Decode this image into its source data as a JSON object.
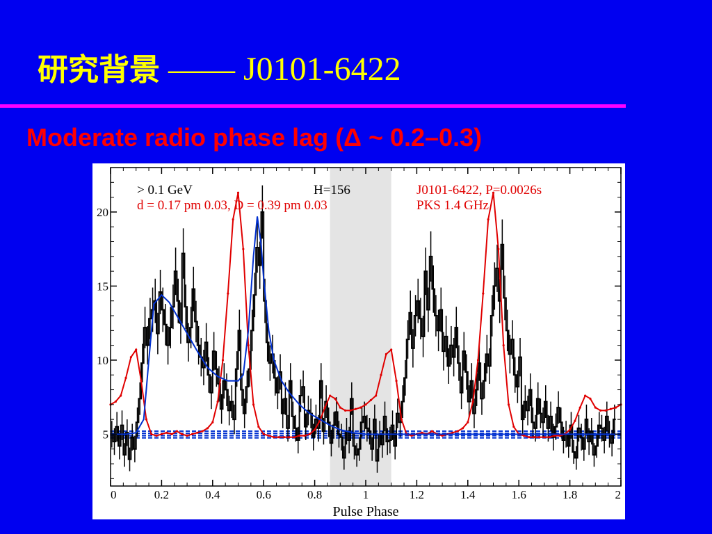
{
  "slide": {
    "title_cjk": "研究背景",
    "title_rest": " —— J0101-6422",
    "subtitle": "Moderate radio phase lag (Δ ~ 0.2–0.3)",
    "colors": {
      "background": "#0000f0",
      "title": "#ffff00",
      "rule": "#ff00ff",
      "subtitle": "#ff0000"
    }
  },
  "chart_data": {
    "type": "line",
    "xlabel": "Pulse Phase",
    "ylabel": "",
    "xlim": [
      0,
      2
    ],
    "ylim": [
      1.5,
      23
    ],
    "xticks": [
      0,
      0.2,
      0.4,
      0.6,
      0.8,
      1,
      1.2,
      1.4,
      1.6,
      1.8,
      2
    ],
    "xtick_labels": [
      "0",
      "0.2",
      "0.4",
      "0.6",
      "0.8",
      "1",
      "1.2",
      "1.4",
      "1.6",
      "1.8",
      "2"
    ],
    "yticks": [
      5,
      10,
      15,
      20
    ],
    "ytick_labels": [
      "5",
      "10",
      "15",
      "20"
    ],
    "shaded_region": [
      0.86,
      1.1
    ],
    "annotations": [
      {
        "id": "energy",
        "text": "> 0.1 GeV",
        "color": "#000000"
      },
      {
        "id": "fit",
        "text": "d = 0.17 pm 0.03,  D = 0.39 pm 0.03",
        "color": "#e00000"
      },
      {
        "id": "htest",
        "text": "H=156",
        "color": "#000000"
      },
      {
        "id": "pulsar",
        "text": "J0101-6422, P=0.0026s",
        "color": "#e00000"
      },
      {
        "id": "radio",
        "text": "PKS 1.4 GHz",
        "color": "#e00000"
      }
    ],
    "background_levels": [
      4.75,
      4.9,
      5.05,
      5.2
    ],
    "gamma_counts": {
      "color": "#000000",
      "bin_width": 0.01,
      "x_start": 0.005,
      "values": [
        5.0,
        4.5,
        5.5,
        4.2,
        5.6,
        3.6,
        5.1,
        3.3,
        4.8,
        4.0,
        5.8,
        7.4,
        9.8,
        12.2,
        11.0,
        12.8,
        13.4,
        14.0,
        11.8,
        14.6,
        13.4,
        12.4,
        11.0,
        12.2,
        13.6,
        16.0,
        14.0,
        12.5,
        17.2,
        13.6,
        11.2,
        12.2,
        14.8,
        12.6,
        11.0,
        10.2,
        9.5,
        11.2,
        9.0,
        7.8,
        10.6,
        9.4,
        8.4,
        6.7,
        8.6,
        8.0,
        6.6,
        7.2,
        6.0,
        9.4,
        12.0,
        8.0,
        6.4,
        8.2,
        9.4,
        12.0,
        14.4,
        17.6,
        16.4,
        20.0,
        14.0,
        11.2,
        9.8,
        10.4,
        8.8,
        7.8,
        9.2,
        6.4,
        7.4,
        5.4,
        8.6,
        6.2,
        5.4,
        4.6,
        7.6,
        8.2,
        5.5,
        6.6,
        6.4,
        4.8,
        6.0,
        5.4,
        8.6,
        5.2,
        7.2,
        5.8,
        4.4,
        5.6,
        6.5,
        5.0,
        4.8,
        3.4,
        5.2,
        4.6,
        7.4,
        4.2,
        3.6,
        4.0,
        5.8,
        6.2,
        5.4,
        5.2,
        4.0,
        6.0,
        3.2,
        5.0,
        4.3,
        6.2,
        4.5,
        4.6,
        5.6,
        4.2,
        6.4,
        5.8,
        7.2,
        8.8,
        11.4,
        13.2,
        10.8,
        13.0,
        14.0,
        12.8,
        11.6,
        16.0,
        13.4,
        17.0,
        14.8,
        13.0,
        12.0,
        13.4,
        10.6,
        11.6,
        9.6,
        11.0,
        10.2,
        12.2,
        9.8,
        7.8,
        10.6,
        9.2,
        7.2,
        8.6,
        6.4,
        8.0,
        9.8,
        7.4,
        8.6,
        10.4,
        9.6,
        13.0,
        15.0,
        16.2,
        14.0,
        17.8,
        14.2,
        12.0,
        10.4,
        11.4,
        9.0,
        8.2,
        10.2,
        6.0,
        7.2,
        6.6,
        8.0,
        5.8,
        5.4,
        7.4,
        6.4,
        5.8,
        7.2,
        5.4,
        6.2,
        4.8,
        5.5,
        6.8,
        5.8,
        4.6,
        5.0,
        4.2,
        5.6,
        3.8,
        3.4,
        5.4,
        4.8,
        4.0,
        6.0,
        4.5,
        5.2,
        3.6,
        4.2,
        5.6,
        5.4,
        4.6,
        6.2,
        5.0,
        4.4,
        6.0
      ],
      "errors": [
        0.9,
        0.9,
        1.0,
        0.9,
        1.0,
        0.8,
        0.9,
        0.8,
        0.9,
        0.9,
        1.0,
        1.1,
        1.3,
        1.4,
        1.3,
        1.4,
        1.5,
        1.5,
        1.4,
        1.5,
        1.5,
        1.4,
        1.3,
        1.4,
        1.5,
        1.6,
        1.5,
        1.4,
        1.7,
        1.5,
        1.3,
        1.4,
        1.5,
        1.4,
        1.3,
        1.3,
        1.2,
        1.3,
        1.2,
        1.1,
        1.3,
        1.2,
        1.2,
        1.0,
        1.2,
        1.1,
        1.0,
        1.1,
        1.0,
        1.2,
        1.4,
        1.1,
        1.0,
        1.1,
        1.2,
        1.4,
        1.5,
        1.7,
        1.6,
        1.8,
        1.5,
        1.3,
        1.2,
        1.3,
        1.2,
        1.1,
        1.2,
        1.0,
        1.1,
        0.9,
        1.2,
        1.0,
        0.9,
        0.9,
        1.1,
        1.1,
        0.9,
        1.0,
        1.0,
        0.9,
        1.0,
        0.9,
        1.2,
        0.9,
        1.1,
        1.0,
        0.9,
        0.9,
        1.0,
        0.9,
        0.9,
        0.8,
        0.9,
        0.9,
        1.1,
        0.9,
        0.8,
        0.8,
        1.0,
        1.0,
        0.9,
        0.9,
        0.8,
        1.0,
        0.8,
        0.9,
        0.9,
        1.0,
        0.9,
        0.9,
        1.0,
        0.9,
        1.0,
        1.0,
        1.1,
        1.2,
        1.3,
        1.5,
        1.3,
        1.4,
        1.5,
        1.4,
        1.4,
        1.6,
        1.5,
        1.7,
        1.6,
        1.4,
        1.4,
        1.5,
        1.3,
        1.4,
        1.2,
        1.3,
        1.3,
        1.4,
        1.2,
        1.1,
        1.3,
        1.2,
        1.1,
        1.2,
        1.0,
        1.1,
        1.2,
        1.1,
        1.2,
        1.3,
        1.2,
        1.4,
        1.6,
        1.6,
        1.5,
        1.7,
        1.5,
        1.4,
        1.3,
        1.3,
        1.2,
        1.1,
        1.3,
        1.0,
        1.1,
        1.0,
        1.1,
        1.0,
        0.9,
        1.1,
        1.0,
        1.0,
        1.1,
        0.9,
        1.0,
        0.9,
        0.9,
        1.1,
        1.0,
        0.9,
        0.9,
        0.8,
        0.9,
        0.8,
        0.8,
        0.9,
        0.9,
        0.8,
        1.0,
        0.9,
        0.9,
        0.8,
        0.8,
        0.9,
        0.9,
        0.9,
        1.0,
        0.9,
        0.9,
        1.0
      ]
    },
    "series": [
      {
        "name": "",
        "color": "#e00000",
        "x": [
          0,
          0.02,
          0.04,
          0.06,
          0.08,
          0.1,
          0.12,
          0.14,
          0.16,
          0.18,
          0.2,
          0.22,
          0.24,
          0.26,
          0.28,
          0.3,
          0.32,
          0.34,
          0.36,
          0.38,
          0.4,
          0.42,
          0.44,
          0.46,
          0.48,
          0.5,
          0.52,
          0.54,
          0.56,
          0.58,
          0.6,
          0.62,
          0.64,
          0.66,
          0.68,
          0.7,
          0.72,
          0.74,
          0.76,
          0.78,
          0.8,
          0.82,
          0.84,
          0.86,
          0.88,
          0.9,
          0.92,
          0.94,
          0.96,
          0.98,
          1,
          1.02,
          1.04,
          1.06,
          1.08,
          1.1,
          1.12,
          1.14,
          1.16,
          1.18,
          1.2,
          1.22,
          1.24,
          1.26,
          1.28,
          1.3,
          1.32,
          1.34,
          1.36,
          1.38,
          1.4,
          1.42,
          1.44,
          1.46,
          1.48,
          1.5,
          1.52,
          1.54,
          1.56,
          1.58,
          1.6,
          1.62,
          1.64,
          1.66,
          1.68,
          1.7,
          1.72,
          1.74,
          1.76,
          1.78,
          1.8,
          1.82,
          1.84,
          1.86,
          1.88,
          1.9,
          1.92,
          1.94,
          1.96,
          1.98,
          2
        ],
        "y": [
          7.0,
          7.2,
          7.6,
          8.8,
          10.2,
          10.7,
          8.6,
          6.0,
          5.0,
          4.9,
          5.0,
          5.1,
          5.0,
          5.2,
          5.0,
          4.9,
          5.0,
          5.1,
          5.2,
          5.4,
          5.8,
          7.2,
          10.0,
          14.5,
          19.5,
          21.3,
          17.5,
          11.0,
          7.0,
          5.5,
          5.0,
          4.9,
          4.8,
          4.8,
          4.8,
          4.8,
          4.8,
          4.9,
          4.9,
          5.0,
          5.3,
          5.9,
          6.8,
          7.6,
          7.4,
          6.8,
          6.6,
          6.6,
          6.7,
          6.8,
          7.0,
          7.3,
          7.6,
          9.0,
          10.4,
          10.7,
          8.6,
          6.0,
          5.0,
          4.9,
          5.0,
          5.1,
          5.0,
          5.2,
          5.0,
          4.9,
          5.0,
          5.1,
          5.2,
          5.4,
          5.8,
          7.2,
          10.0,
          14.5,
          19.5,
          21.3,
          17.5,
          11.0,
          7.0,
          5.5,
          5.0,
          4.9,
          4.8,
          4.8,
          4.8,
          4.8,
          4.8,
          4.9,
          4.9,
          5.0,
          5.3,
          5.9,
          6.8,
          7.6,
          7.4,
          6.8,
          6.6,
          6.6,
          6.7,
          6.8,
          7.0
        ]
      },
      {
        "name": "",
        "color": "#0030d0",
        "x": [
          0,
          0.06,
          0.1,
          0.13,
          0.15,
          0.17,
          0.2,
          0.23,
          0.26,
          0.3,
          0.34,
          0.38,
          0.42,
          0.46,
          0.5,
          0.52,
          0.54,
          0.56,
          0.575,
          0.59,
          0.6,
          0.62,
          0.64,
          0.67,
          0.7,
          0.74,
          0.78,
          0.82,
          0.86,
          0.9,
          0.95,
          1,
          1.05,
          1.1,
          1.15,
          1.2,
          1.3,
          1.4,
          1.5,
          1.6,
          1.7,
          1.8,
          1.9,
          2
        ],
        "y": [
          5.0,
          5.0,
          5.1,
          6.0,
          10.0,
          13.8,
          14.4,
          13.9,
          13.0,
          11.8,
          10.6,
          9.5,
          8.9,
          8.6,
          8.6,
          9.0,
          12.0,
          17.0,
          19.7,
          17.8,
          15.5,
          12.0,
          10.0,
          8.6,
          7.8,
          7.0,
          6.4,
          6.0,
          5.6,
          5.3,
          5.1,
          5.0,
          5.0,
          5.0,
          5.0,
          5.0,
          5.0,
          5.0,
          5.0,
          5.0,
          5.0,
          5.0,
          5.0,
          5.0
        ]
      }
    ]
  }
}
